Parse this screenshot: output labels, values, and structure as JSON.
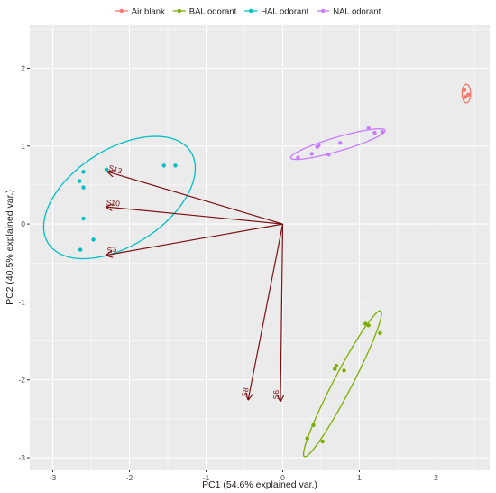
{
  "chart_data": {
    "type": "scatter",
    "subtype": "pca-biplot",
    "title": "",
    "xlabel": "PC1 (54.6% explained var.)",
    "ylabel": "PC2 (40.5% explained var.)",
    "xlim": [
      -3.3,
      2.7
    ],
    "ylim": [
      -3.15,
      2.55
    ],
    "x_ticks": [
      -3,
      -2,
      -1,
      0,
      1,
      2
    ],
    "y_ticks": [
      -3,
      -2,
      -1,
      0,
      1,
      2
    ],
    "x_tick_labels": [
      "-3",
      "-2",
      "-1",
      "0",
      "1",
      "2"
    ],
    "y_tick_labels": [
      "-3",
      "-2",
      "-1",
      "0",
      "1",
      "2"
    ],
    "grid": true,
    "legend_position": "top",
    "panel_color": "#ebebeb",
    "grid_color": "#ffffff",
    "series": [
      {
        "name": "Air blank",
        "color": "#f8766d",
        "points": [
          [
            2.37,
            1.72
          ],
          [
            2.42,
            1.66
          ],
          [
            2.38,
            1.63
          ]
        ],
        "ellipse": {
          "cx": 2.395,
          "cy": 1.675,
          "rx": 0.12,
          "ry": 0.055,
          "angle_deg": 90
        }
      },
      {
        "name": "BAL odorant",
        "color": "#7cae00",
        "points": [
          [
            1.08,
            -1.28
          ],
          [
            1.12,
            -1.3
          ],
          [
            1.27,
            -1.4
          ],
          [
            0.7,
            -1.82
          ],
          [
            0.68,
            -1.86
          ],
          [
            0.8,
            -1.88
          ],
          [
            0.4,
            -2.58
          ],
          [
            0.32,
            -2.75
          ],
          [
            0.52,
            -2.79
          ]
        ],
        "ellipse": {
          "cx": 0.78,
          "cy": -2.05,
          "rx": 1.06,
          "ry": 0.12,
          "angle_deg": 62
        }
      },
      {
        "name": "HAL odorant",
        "color": "#00bfc4",
        "points": [
          [
            -2.6,
            0.67
          ],
          [
            -2.65,
            0.55
          ],
          [
            -2.6,
            0.47
          ],
          [
            -2.6,
            0.07
          ],
          [
            -2.47,
            -0.2
          ],
          [
            -2.64,
            -0.33
          ],
          [
            -1.55,
            0.75
          ],
          [
            -1.4,
            0.75
          ],
          [
            -2.3,
            0.7
          ]
        ],
        "ellipse": {
          "cx": -2.13,
          "cy": 0.34,
          "rx": 1.1,
          "ry": 0.62,
          "angle_deg": 32
        }
      },
      {
        "name": "NAL odorant",
        "color": "#c77cff",
        "points": [
          [
            0.2,
            0.85
          ],
          [
            0.38,
            0.9
          ],
          [
            0.45,
            0.99
          ],
          [
            0.47,
            1.01
          ],
          [
            0.6,
            0.89
          ],
          [
            0.75,
            1.04
          ],
          [
            1.12,
            1.23
          ],
          [
            1.2,
            1.17
          ],
          [
            1.3,
            1.18
          ]
        ],
        "ellipse": {
          "cx": 0.72,
          "cy": 1.025,
          "rx": 0.64,
          "ry": 0.09,
          "angle_deg": 16
        }
      }
    ],
    "loadings": {
      "color": "#7b1113",
      "origin": [
        0,
        0
      ],
      "arrows": [
        {
          "label": "S13",
          "x": -2.28,
          "y": 0.67
        },
        {
          "label": "S10",
          "x": -2.3,
          "y": 0.22
        },
        {
          "label": "S3",
          "x": -2.3,
          "y": -0.4
        },
        {
          "label": "S8",
          "x": -0.45,
          "y": -2.25
        },
        {
          "label": "S6",
          "x": -0.03,
          "y": -2.27
        }
      ]
    }
  }
}
